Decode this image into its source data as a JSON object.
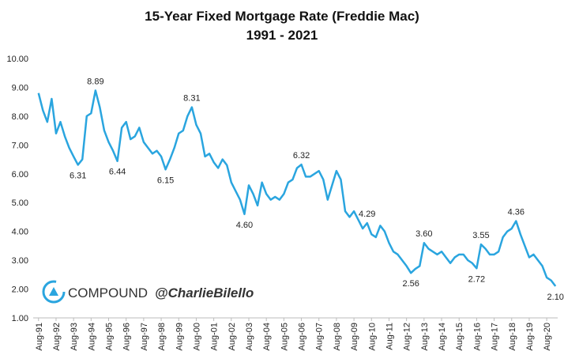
{
  "chart_data": {
    "type": "line",
    "title": "15-Year Fixed Mortgage Rate (Freddie Mac)",
    "subtitle": "1991 - 2021",
    "color": "#2aa5df",
    "ylim": [
      1,
      10
    ],
    "yticks": [
      {
        "value": 1,
        "label": "1.00"
      },
      {
        "value": 2,
        "label": "2.00"
      },
      {
        "value": 3,
        "label": "3.00"
      },
      {
        "value": 4,
        "label": "4.00"
      },
      {
        "value": 5,
        "label": "5.00"
      },
      {
        "value": 6,
        "label": "6.00"
      },
      {
        "value": 7,
        "label": "7.00"
      },
      {
        "value": 8,
        "label": "8.00"
      },
      {
        "value": 9,
        "label": "9.00"
      },
      {
        "value": 10,
        "label": "10.00"
      }
    ],
    "grid": false,
    "categories": [
      "Aug-91",
      null,
      null,
      null,
      "Aug-92",
      null,
      null,
      null,
      "Aug-93",
      null,
      null,
      null,
      "Aug-94",
      null,
      null,
      null,
      "Aug-95",
      null,
      null,
      null,
      "Aug-96",
      null,
      null,
      null,
      "Aug-97",
      null,
      null,
      null,
      "Aug-98",
      null,
      null,
      null,
      "Aug-99",
      null,
      null,
      null,
      "Aug-00",
      null,
      null,
      null,
      "Aug-01",
      null,
      null,
      null,
      "Aug-02",
      null,
      null,
      null,
      "Aug-03",
      null,
      null,
      null,
      "Aug-04",
      null,
      null,
      null,
      "Aug-05",
      null,
      null,
      null,
      "Aug-06",
      null,
      null,
      null,
      "Aug-07",
      null,
      null,
      null,
      "Aug-08",
      null,
      null,
      null,
      "Aug-09",
      null,
      null,
      null,
      "Aug-10",
      null,
      null,
      null,
      "Aug-11",
      null,
      null,
      null,
      "Aug-12",
      null,
      null,
      null,
      "Aug-13",
      null,
      null,
      null,
      "Aug-14",
      null,
      null,
      null,
      "Aug-15",
      null,
      null,
      null,
      "Aug-16",
      null,
      null,
      null,
      "Aug-17",
      null,
      null,
      null,
      "Aug-18",
      null,
      null,
      null,
      "Aug-19",
      null,
      null,
      null,
      "Aug-20",
      null,
      null
    ],
    "values": [
      8.8,
      8.2,
      7.8,
      8.6,
      7.4,
      7.8,
      7.3,
      6.9,
      6.6,
      6.31,
      6.5,
      8.0,
      8.1,
      8.89,
      8.3,
      7.5,
      7.1,
      6.8,
      6.44,
      7.6,
      7.8,
      7.2,
      7.3,
      7.6,
      7.1,
      6.9,
      6.7,
      6.8,
      6.6,
      6.15,
      6.5,
      6.9,
      7.4,
      7.5,
      8.0,
      8.31,
      7.7,
      7.4,
      6.6,
      6.7,
      6.4,
      6.2,
      6.5,
      6.3,
      5.7,
      5.4,
      5.1,
      4.6,
      5.6,
      5.3,
      4.9,
      5.7,
      5.3,
      5.1,
      5.2,
      5.1,
      5.3,
      5.7,
      5.8,
      6.2,
      6.32,
      5.9,
      5.9,
      6.0,
      6.1,
      5.8,
      5.1,
      5.6,
      6.1,
      5.8,
      4.7,
      4.5,
      4.7,
      4.4,
      4.1,
      4.29,
      3.9,
      3.8,
      4.2,
      4.0,
      3.6,
      3.3,
      3.2,
      3.0,
      2.8,
      2.56,
      2.7,
      2.8,
      3.6,
      3.4,
      3.3,
      3.2,
      3.3,
      3.1,
      2.9,
      3.1,
      3.2,
      3.2,
      3.0,
      2.9,
      2.72,
      3.55,
      3.4,
      3.2,
      3.2,
      3.3,
      3.8,
      4.0,
      4.1,
      4.36,
      3.9,
      3.5,
      3.1,
      3.2,
      3.0,
      2.8,
      2.4,
      2.3,
      2.1
    ],
    "value_labels": [
      null,
      null,
      null,
      null,
      null,
      null,
      null,
      null,
      null,
      "6.31",
      null,
      null,
      null,
      "8.89",
      null,
      null,
      null,
      null,
      "6.44",
      null,
      null,
      null,
      null,
      null,
      null,
      null,
      null,
      null,
      null,
      "6.15",
      null,
      null,
      null,
      null,
      null,
      "8.31",
      null,
      null,
      null,
      null,
      null,
      null,
      null,
      null,
      null,
      null,
      null,
      "4.60",
      null,
      null,
      null,
      null,
      null,
      null,
      null,
      null,
      null,
      null,
      null,
      null,
      "6.32",
      null,
      null,
      null,
      null,
      null,
      null,
      null,
      null,
      null,
      null,
      null,
      null,
      null,
      null,
      "4.29",
      null,
      null,
      null,
      null,
      null,
      null,
      null,
      null,
      null,
      "2.56",
      null,
      null,
      "3.60",
      null,
      null,
      null,
      null,
      null,
      null,
      null,
      null,
      null,
      null,
      null,
      "2.72",
      "3.55",
      null,
      null,
      null,
      null,
      null,
      null,
      null,
      "4.36",
      null,
      null,
      null,
      null,
      null,
      null,
      null,
      null,
      "2.10"
    ]
  },
  "watermark": {
    "brand": "COMPOUND",
    "handle": "@CharlieBilello"
  }
}
